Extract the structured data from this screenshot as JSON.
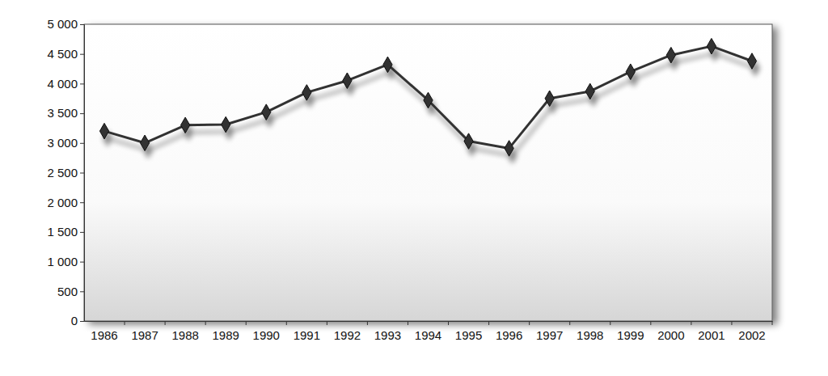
{
  "chart_data": {
    "type": "line",
    "categories": [
      "1986",
      "1987",
      "1988",
      "1989",
      "1990",
      "1991",
      "1992",
      "1993",
      "1994",
      "1995",
      "1996",
      "1997",
      "1998",
      "1999",
      "2000",
      "2001",
      "2002"
    ],
    "values": [
      3200,
      3000,
      3300,
      3310,
      3520,
      3850,
      4050,
      4320,
      3720,
      3030,
      2910,
      3750,
      3870,
      4200,
      4480,
      4630,
      4380
    ],
    "color": "#333333",
    "marker": "diamond",
    "ylim": [
      0,
      5000
    ],
    "yticks": [
      0,
      500,
      {
        "value": 1000,
        "label": "1 000"
      },
      {
        "value": 1500,
        "label": "1 500"
      },
      {
        "value": 2000,
        "label": "2 000"
      },
      {
        "value": 2500,
        "label": "2 500"
      },
      {
        "value": 3000,
        "label": "3 000"
      },
      {
        "value": 3500,
        "label": "3 500"
      },
      {
        "value": 4000,
        "label": "4 000"
      },
      {
        "value": 4500,
        "label": "4 500"
      },
      {
        "value": 5000,
        "label": "5 000"
      }
    ],
    "grid": false
  }
}
